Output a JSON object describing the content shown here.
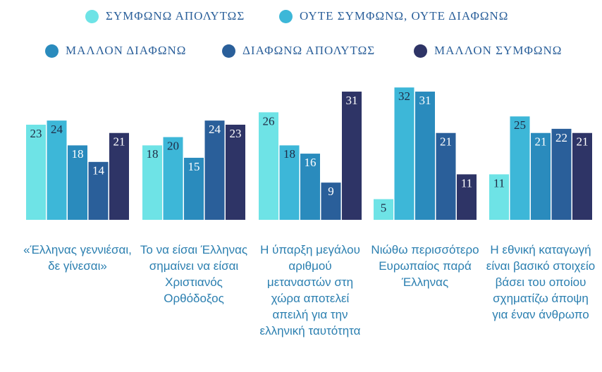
{
  "chart_data": {
    "type": "bar",
    "categories": [
      "«Έλληνας γεννιέσαι, δε γίνεσαι»",
      "Το να είσαι Έλληνας σημαίνει να είσαι Χριστιανός Ορθόδοξος",
      "Η ύπαρξη μεγάλου αριθμού μεταναστών στη χώρα αποτελεί απειλή για την ελληνική ταυτότητα",
      "Νιώθω περισσότερο Ευρωπαίος παρά Έλληνας",
      "Η εθνική καταγωγή είναι βασικό στοιχείο βάσει του οποίου σχηματίζω άποψη για έναν άνθρωπο"
    ],
    "series": [
      {
        "name": "ΣΥΜΦΩΝΩ ΑΠΟΛΥΤΩΣ",
        "color": "#6ee3e6",
        "values": [
          23,
          18,
          26,
          5,
          11
        ]
      },
      {
        "name": "ΟΥΤΕ ΣΥΜΦΩΝΩ, ΟΥΤΕ ΔΙΑΦΩΝΩ",
        "color": "#3db7d8",
        "values": [
          24,
          20,
          18,
          32,
          25
        ]
      },
      {
        "name": "ΜΑΛΛΟΝ ΔΙΑΦΩΝΩ",
        "color": "#2a8bbd",
        "values": [
          18,
          15,
          16,
          31,
          21
        ]
      },
      {
        "name": "ΔΙΑΦΩΝΩ ΑΠΟΛΥΤΩΣ",
        "color": "#2a5f9a",
        "values": [
          14,
          24,
          9,
          21,
          22
        ]
      },
      {
        "name": "ΜΑΛΛΟΝ ΣΥΜΦΩΝΩ",
        "color": "#2e3466",
        "values": [
          21,
          23,
          31,
          11,
          21
        ]
      }
    ]
  }
}
